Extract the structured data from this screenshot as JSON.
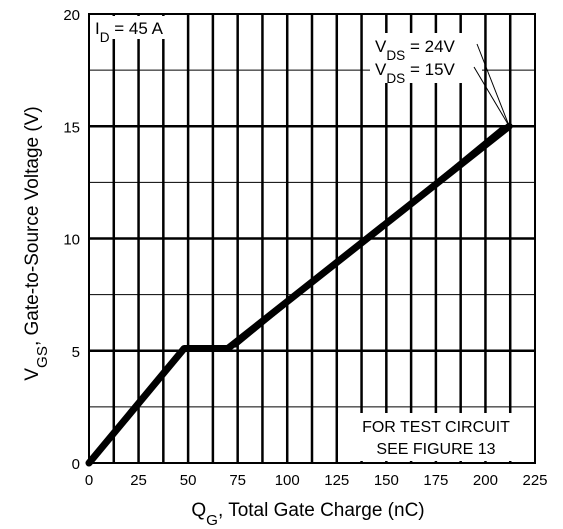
{
  "chart_data": {
    "type": "line",
    "x_ticks": [
      "0",
      "25",
      "50",
      "75",
      "100",
      "125",
      "150",
      "175",
      "200",
      "225"
    ],
    "y_ticks": [
      "0",
      "5",
      "10",
      "15",
      "20"
    ],
    "xlim": [
      0,
      225
    ],
    "ylim": [
      0,
      20
    ],
    "grid": true,
    "minor_x_step": 12.5,
    "major_y_step": 5,
    "minor_y_step": 2.5,
    "xlabel": {
      "main": "Q",
      "sub": "G",
      "rest": ", Total Gate Charge (nC)"
    },
    "ylabel": {
      "main": "V",
      "sub": "GS",
      "rest": ", Gate-to-Source Voltage (V)"
    },
    "condition": {
      "main": "I",
      "sub": "D",
      "rest": " = 45 A"
    },
    "note_lines": [
      "FOR TEST CIRCUIT",
      "SEE FIGURE 13"
    ],
    "series": [
      {
        "name": {
          "main": "V",
          "sub": "DS",
          "rest": " = 24V"
        },
        "x": [
          0,
          48,
          70,
          212
        ],
        "y": [
          0,
          5.1,
          5.1,
          15.0
        ]
      },
      {
        "name": {
          "main": "V",
          "sub": "DS",
          "rest": " = 15V"
        },
        "x": [
          0,
          49,
          74,
          209
        ],
        "y": [
          0,
          5.1,
          5.2,
          15.0
        ]
      }
    ]
  }
}
